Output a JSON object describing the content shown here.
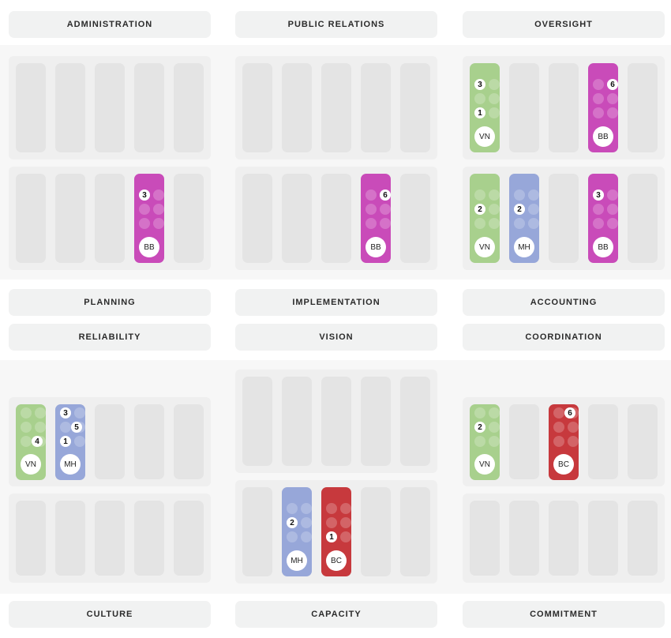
{
  "colors": {
    "green": "#a8d08d",
    "blue": "#97a7d9",
    "magenta": "#c94bb9",
    "red": "#c7393d"
  },
  "labels": {
    "administration": "ADMINISTRATION",
    "public_relations": "PUBLIC RELATIONS",
    "oversight": "OVERSIGHT",
    "planning": "PLANNING",
    "implementation": "IMPLEMENTATION",
    "accounting": "ACCOUNTING",
    "reliability": "RELIABILITY",
    "vision": "VISION",
    "coordination": "COORDINATION",
    "culture": "CULTURE",
    "capacity": "CAPACITY",
    "commitment": "COMMITMENT"
  },
  "chips": {
    "oversight_top_vn": {
      "initials": "VN",
      "badges": [
        "3",
        "1"
      ]
    },
    "oversight_top_bb": {
      "initials": "BB",
      "badges": [
        "6"
      ]
    },
    "admin_bottom_bb": {
      "initials": "BB",
      "badges": [
        "3"
      ]
    },
    "pr_bottom_bb": {
      "initials": "BB",
      "badges": [
        "6"
      ]
    },
    "oversight_bottom_vn": {
      "initials": "VN",
      "badges": [
        "2"
      ]
    },
    "oversight_bottom_mh": {
      "initials": "MH",
      "badges": [
        "2"
      ]
    },
    "oversight_bottom_bb": {
      "initials": "BB",
      "badges": [
        "3"
      ]
    },
    "reliability_vn": {
      "initials": "VN",
      "badges": [
        "4"
      ]
    },
    "reliability_mh": {
      "initials": "MH",
      "badges": [
        "3",
        "5",
        "1"
      ]
    },
    "coordination_vn": {
      "initials": "VN",
      "badges": [
        "2"
      ]
    },
    "coordination_bc": {
      "initials": "BC",
      "badges": [
        "6"
      ]
    },
    "capacity_mh": {
      "initials": "MH",
      "badges": [
        "2"
      ]
    },
    "capacity_bc": {
      "initials": "BC",
      "badges": [
        "1"
      ]
    }
  }
}
